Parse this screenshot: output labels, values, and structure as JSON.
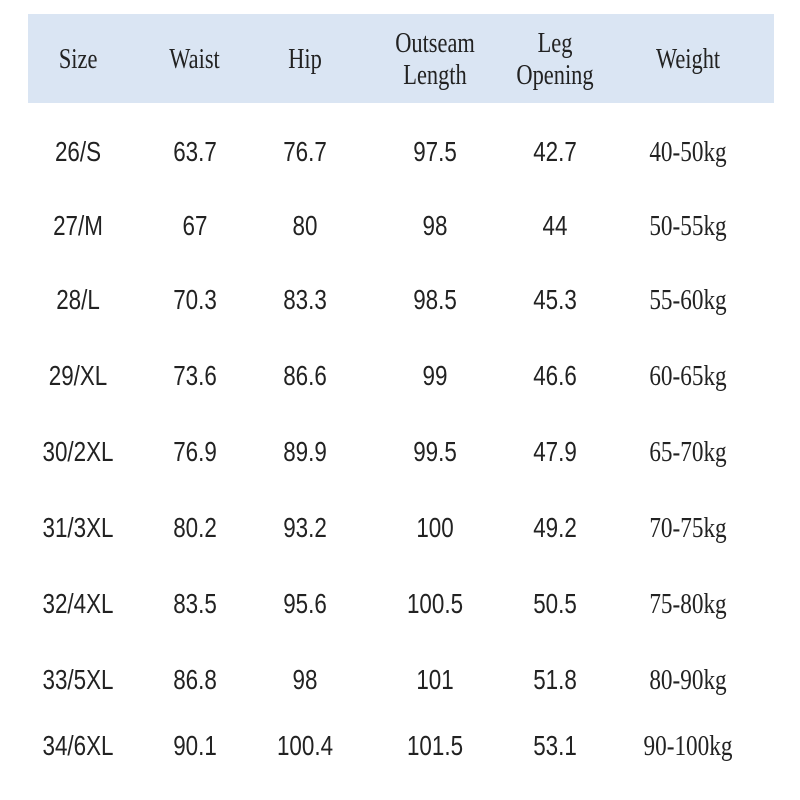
{
  "table": {
    "header": [
      "Size",
      "Waist",
      "Hip",
      "Outseam Length",
      "Leg Opening",
      "Weight"
    ],
    "rows": [
      [
        "26/S",
        "63.7",
        "76.7",
        "97.5",
        "42.7",
        "40-50kg"
      ],
      [
        "27/M",
        "67",
        "80",
        "98",
        "44",
        "50-55kg"
      ],
      [
        "28/L",
        "70.3",
        "83.3",
        "98.5",
        "45.3",
        "55-60kg"
      ],
      [
        "29/XL",
        "73.6",
        "86.6",
        "99",
        "46.6",
        "60-65kg"
      ],
      [
        "30/2XL",
        "76.9",
        "89.9",
        "99.5",
        "47.9",
        "65-70kg"
      ],
      [
        "31/3XL",
        "80.2",
        "93.2",
        "100",
        "49.2",
        "70-75kg"
      ],
      [
        "32/4XL",
        "83.5",
        "95.6",
        "100.5",
        "50.5",
        "75-80kg"
      ],
      [
        "33/5XL",
        "86.8",
        "98",
        "101",
        "51.8",
        "80-90kg"
      ],
      [
        "34/6XL",
        "90.1",
        "100.4",
        "101.5",
        "53.1",
        "90-100kg"
      ]
    ]
  }
}
